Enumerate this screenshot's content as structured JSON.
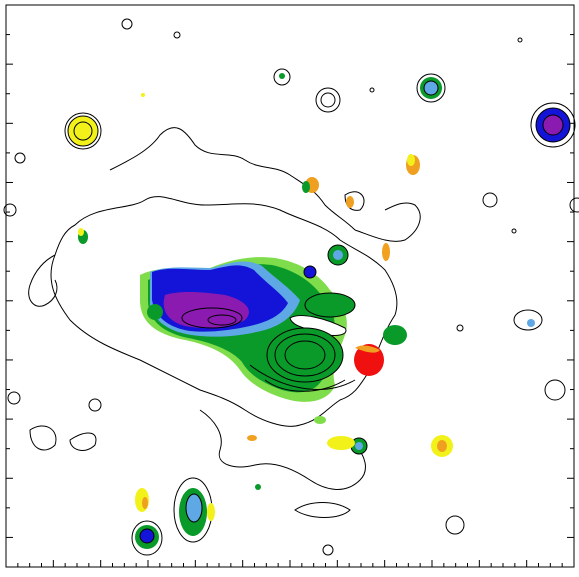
{
  "image": {
    "kind": "astronomical contour map with color-coded flux regions",
    "colors": {
      "background": "#ffffff",
      "frame": "#000000",
      "contour": "#000000",
      "purple": "#8a1ab0",
      "blue": "#1414d8",
      "light_blue": "#5fa8e6",
      "green": "#0a9a2a",
      "light_green": "#7fdc4a",
      "yellow": "#f2f21a",
      "orange": "#f0a020",
      "red": "#f01010"
    },
    "axes": {
      "tick_marks_only": true,
      "tick_labels": []
    }
  }
}
